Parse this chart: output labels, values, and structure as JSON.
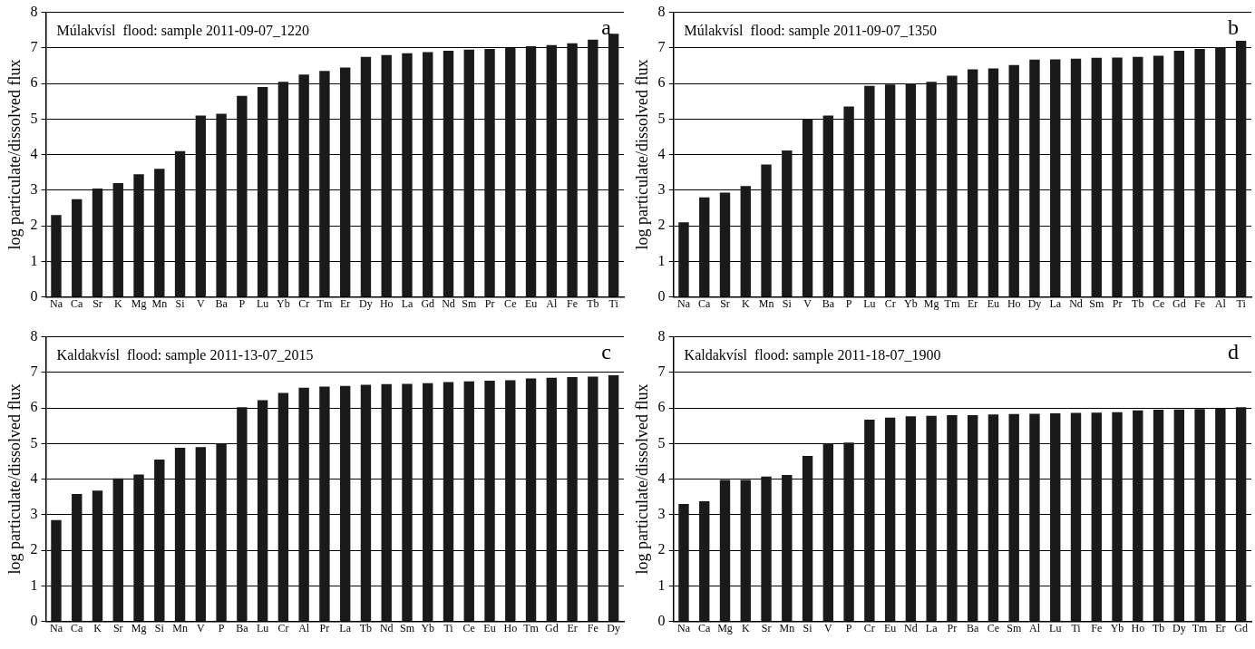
{
  "chart_data": [
    {
      "type": "bar",
      "title": "Múlakvísl  flood: sample 2011-09-07_1220",
      "ylabel": "log particulate/dissolved flux",
      "annotations": [
        "a"
      ],
      "categories": [
        "Na",
        "Ca",
        "Sr",
        "K",
        "Mg",
        "Mn",
        "Si",
        "V",
        "Ba",
        "P",
        "Lu",
        "Yb",
        "Cr",
        "Tm",
        "Er",
        "Dy",
        "Ho",
        "La",
        "Gd",
        "Nd",
        "Sm",
        "Pr",
        "Ce",
        "Eu",
        "Al",
        "Fe",
        "Tb",
        "Ti"
      ],
      "color": "#1a1a1a",
      "values": [
        2.3,
        2.75,
        3.05,
        3.2,
        3.45,
        3.6,
        4.1,
        5.1,
        5.15,
        5.65,
        5.9,
        6.05,
        6.25,
        6.35,
        6.45,
        6.75,
        6.8,
        6.85,
        6.88,
        6.92,
        6.95,
        6.97,
        7.0,
        7.05,
        7.08,
        7.13,
        7.23,
        7.4
      ],
      "ylim": [
        0,
        8
      ],
      "yticks": [
        0,
        1,
        2,
        3,
        4,
        5,
        6,
        7,
        8
      ],
      "grid": "y",
      "legend": false
    },
    {
      "type": "bar",
      "title": "Múlakvísl  flood: sample 2011-09-07_1350",
      "ylabel": "log particulate/dissolved flux",
      "annotations": [
        "b"
      ],
      "categories": [
        "Na",
        "Ca",
        "Sr",
        "K",
        "Mn",
        "Si",
        "V",
        "Ba",
        "P",
        "Lu",
        "Cr",
        "Yb",
        "Mg",
        "Tm",
        "Er",
        "Eu",
        "Ho",
        "Dy",
        "La",
        "Nd",
        "Sm",
        "Pr",
        "Tb",
        "Ce",
        "Gd",
        "Fe",
        "Al",
        "Ti"
      ],
      "color": "#1a1a1a",
      "values": [
        2.1,
        2.8,
        2.93,
        3.12,
        3.72,
        4.12,
        5.0,
        5.1,
        5.35,
        5.93,
        5.97,
        6.0,
        6.05,
        6.22,
        6.4,
        6.42,
        6.52,
        6.67,
        6.68,
        6.7,
        6.72,
        6.73,
        6.75,
        6.78,
        6.92,
        6.97,
        7.02,
        7.2
      ],
      "ylim": [
        0,
        8
      ],
      "yticks": [
        0,
        1,
        2,
        3,
        4,
        5,
        6,
        7,
        8
      ],
      "grid": "y",
      "legend": false
    },
    {
      "type": "bar",
      "title": "Kaldakvísl  flood: sample 2011-13-07_2015",
      "ylabel": "log particulate/dissolved flux",
      "annotations": [
        "c"
      ],
      "categories": [
        "Na",
        "Ca",
        "K",
        "Sr",
        "Mg",
        "Si",
        "Mn",
        "V",
        "P",
        "Ba",
        "Lu",
        "Cr",
        "Al",
        "Pr",
        "La",
        "Tb",
        "Nd",
        "Sm",
        "Yb",
        "Ti",
        "Ce",
        "Eu",
        "Ho",
        "Tm",
        "Gd",
        "Er",
        "Fe",
        "Dy"
      ],
      "color": "#1a1a1a",
      "values": [
        2.85,
        3.58,
        3.68,
        4.02,
        4.13,
        4.55,
        4.88,
        4.9,
        5.0,
        6.02,
        6.22,
        6.42,
        6.57,
        6.6,
        6.62,
        6.65,
        6.67,
        6.68,
        6.7,
        6.73,
        6.75,
        6.77,
        6.78,
        6.83,
        6.85,
        6.87,
        6.88,
        6.92
      ],
      "ylim": [
        0,
        8
      ],
      "yticks": [
        0,
        1,
        2,
        3,
        4,
        5,
        6,
        7,
        8
      ],
      "grid": "y",
      "legend": false
    },
    {
      "type": "bar",
      "title": "Kaldakvísl  flood: sample 2011-18-07_1900",
      "ylabel": "log particulate/dissolved flux",
      "annotations": [
        "d"
      ],
      "categories": [
        "Na",
        "Ca",
        "Mg",
        "K",
        "Sr",
        "Mn",
        "Si",
        "V",
        "P",
        "Cr",
        "Eu",
        "Nd",
        "La",
        "Pr",
        "Ba",
        "Ce",
        "Sm",
        "Al",
        "Lu",
        "Ti",
        "Fe",
        "Yb",
        "Ho",
        "Tb",
        "Dy",
        "Tm",
        "Er",
        "Gd"
      ],
      "color": "#1a1a1a",
      "values": [
        3.3,
        3.38,
        3.98,
        3.98,
        4.07,
        4.12,
        4.65,
        5.0,
        5.03,
        5.67,
        5.73,
        5.77,
        5.78,
        5.8,
        5.8,
        5.82,
        5.83,
        5.84,
        5.85,
        5.86,
        5.87,
        5.88,
        5.93,
        5.95,
        5.96,
        5.97,
        5.99,
        6.02
      ],
      "ylim": [
        0,
        8
      ],
      "yticks": [
        0,
        1,
        2,
        3,
        4,
        5,
        6,
        7,
        8
      ],
      "grid": "y",
      "legend": false
    }
  ]
}
